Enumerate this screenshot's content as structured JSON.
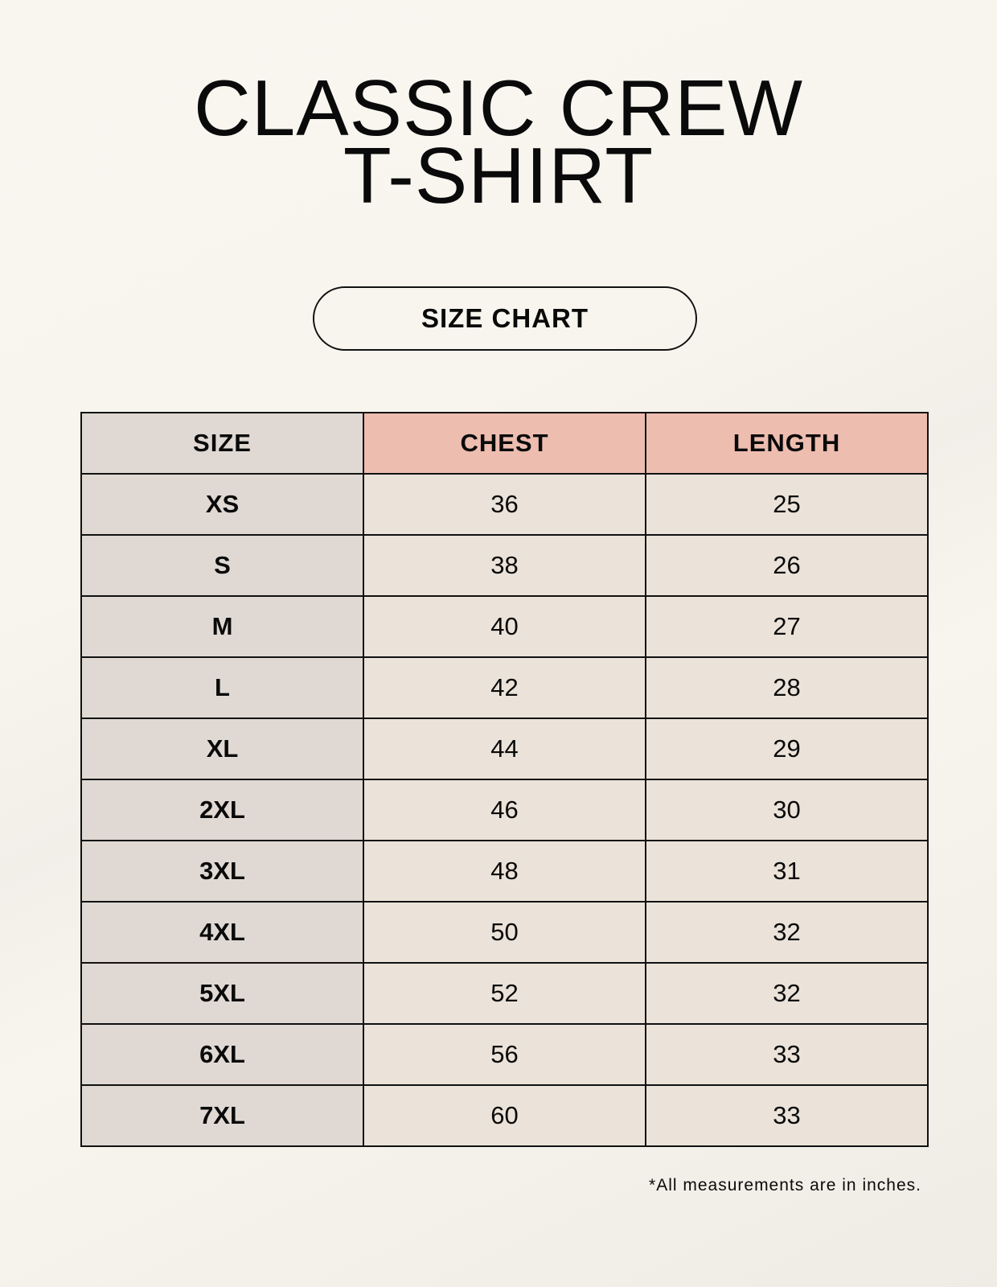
{
  "title": {
    "line1": "CLASSIC CREW",
    "line2": "T-SHIRT"
  },
  "badge": "SIZE CHART",
  "table": {
    "headers": [
      "SIZE",
      "CHEST",
      "LENGTH"
    ],
    "rows": [
      [
        "XS",
        "36",
        "25"
      ],
      [
        "S",
        "38",
        "26"
      ],
      [
        "M",
        "40",
        "27"
      ],
      [
        "L",
        "42",
        "28"
      ],
      [
        "XL",
        "44",
        "29"
      ],
      [
        "2XL",
        "46",
        "30"
      ],
      [
        "3XL",
        "48",
        "31"
      ],
      [
        "4XL",
        "50",
        "32"
      ],
      [
        "5XL",
        "52",
        "32"
      ],
      [
        "6XL",
        "56",
        "33"
      ],
      [
        "7XL",
        "60",
        "33"
      ]
    ]
  },
  "footnote": "*All measurements are in inches.",
  "colors": {
    "size_column": "#e0d9d3",
    "header_accent": "#edbdb0",
    "value_cells": "#ebe3d9"
  }
}
